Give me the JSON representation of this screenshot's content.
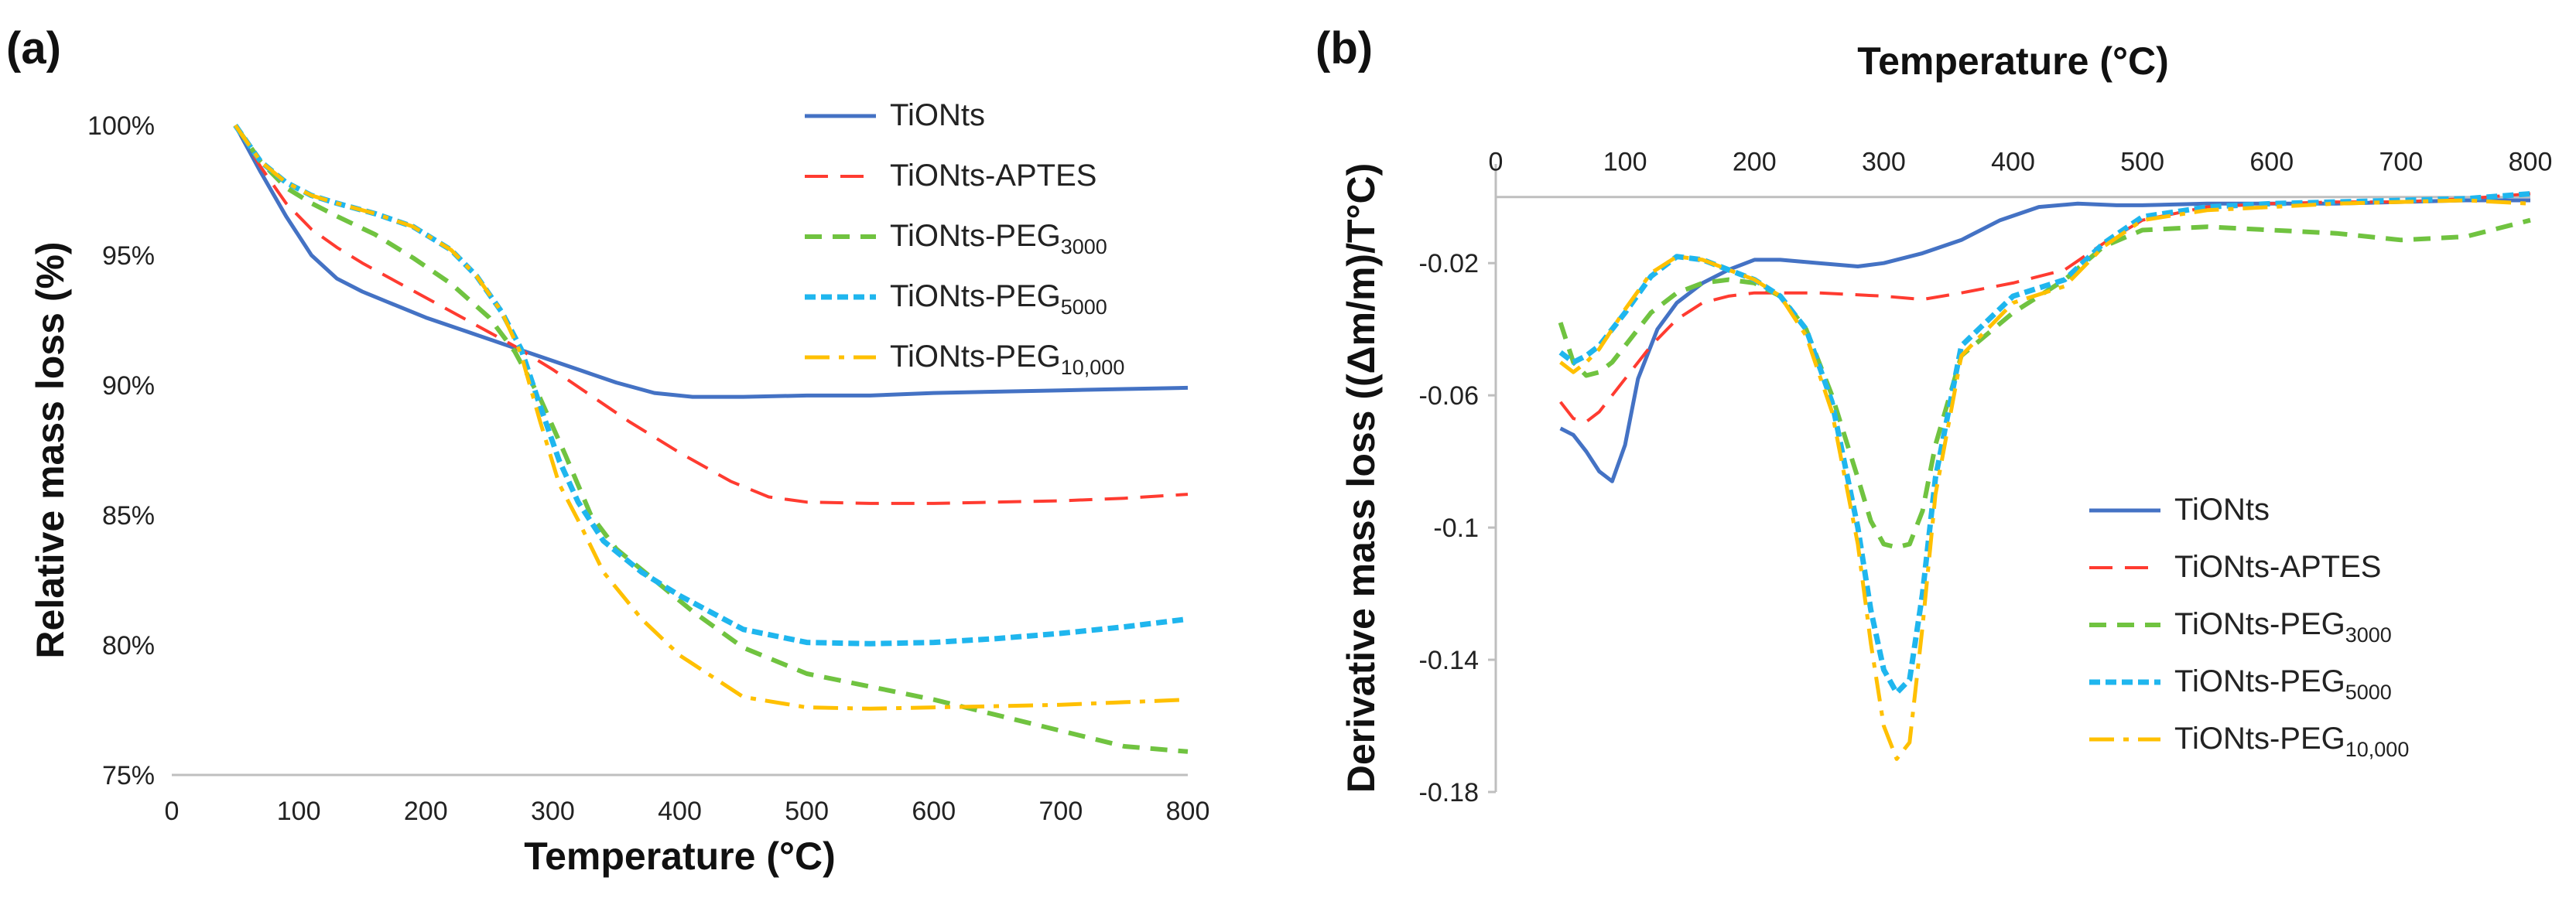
{
  "panels": {
    "a": {
      "label": "(a)"
    },
    "b": {
      "label": "(b)"
    }
  },
  "legend": [
    {
      "key": "TiONts",
      "base": "TiONts",
      "sub": ""
    },
    {
      "key": "TiONts-APTES",
      "base": "TiONts-APTES",
      "sub": ""
    },
    {
      "key": "TiONts-PEG3000",
      "base": "TiONts-PEG",
      "sub": "3000"
    },
    {
      "key": "TiONts-PEG5000",
      "base": "TiONts-PEG",
      "sub": "5000"
    },
    {
      "key": "TiONts-PEG10,000",
      "base": "TiONts-PEG",
      "sub": "10,000"
    }
  ],
  "colors": {
    "TiONts": "#4472c4",
    "TiONts-APTES": "#ff3b30",
    "TiONts-PEG3000": "#70c340",
    "TiONts-PEG5000": "#1fb6ee",
    "TiONts-PEG10,000": "#ffc000"
  },
  "chart_data": [
    {
      "type": "line",
      "id": "a",
      "title": "",
      "xlabel": "Temperature (°C)",
      "ylabel": "Relative mass loss (%)",
      "xlim": [
        0,
        800
      ],
      "ylim": [
        75,
        100
      ],
      "x_ticks": [
        0,
        100,
        200,
        300,
        400,
        500,
        600,
        700,
        800
      ],
      "y_ticks": [
        75,
        80,
        85,
        90,
        95,
        100
      ],
      "y_tick_labels": [
        "75%",
        "80%",
        "85%",
        "90%",
        "95%",
        "100%"
      ],
      "series": [
        {
          "name": "TiONts",
          "x": [
            50,
            70,
            90,
            110,
            130,
            150,
            170,
            200,
            230,
            260,
            290,
            320,
            350,
            380,
            410,
            450,
            500,
            550,
            600,
            650,
            700,
            750,
            800
          ],
          "y": [
            100,
            98.2,
            96.5,
            95.0,
            94.1,
            93.6,
            93.2,
            92.6,
            92.1,
            91.6,
            91.1,
            90.6,
            90.1,
            89.7,
            89.55,
            89.55,
            89.6,
            89.6,
            89.7,
            89.75,
            89.8,
            89.85,
            89.9
          ]
        },
        {
          "name": "TiONts-APTES",
          "x": [
            50,
            70,
            90,
            110,
            130,
            150,
            180,
            210,
            240,
            270,
            300,
            330,
            360,
            400,
            440,
            470,
            500,
            550,
            600,
            650,
            700,
            750,
            800
          ],
          "y": [
            100,
            98.4,
            97.0,
            96.0,
            95.3,
            94.7,
            93.9,
            93.1,
            92.3,
            91.5,
            90.6,
            89.6,
            88.6,
            87.4,
            86.3,
            85.7,
            85.5,
            85.45,
            85.45,
            85.5,
            85.55,
            85.65,
            85.8
          ]
        },
        {
          "name": "TiONts-PEG3000",
          "x": [
            50,
            70,
            90,
            110,
            130,
            160,
            190,
            220,
            250,
            270,
            290,
            310,
            330,
            350,
            380,
            410,
            450,
            500,
            550,
            600,
            650,
            700,
            750,
            800
          ],
          "y": [
            100,
            98.6,
            97.6,
            97.0,
            96.5,
            95.8,
            94.9,
            93.9,
            92.6,
            91.3,
            89.5,
            87.3,
            85.0,
            83.7,
            82.5,
            81.3,
            79.9,
            78.9,
            78.4,
            77.9,
            77.3,
            76.7,
            76.1,
            75.9
          ]
        },
        {
          "name": "TiONts-PEG5000",
          "x": [
            50,
            70,
            90,
            110,
            130,
            160,
            190,
            220,
            240,
            260,
            275,
            290,
            305,
            320,
            340,
            370,
            400,
            450,
            500,
            550,
            600,
            650,
            700,
            750,
            800
          ],
          "y": [
            100,
            98.6,
            97.8,
            97.3,
            97.0,
            96.6,
            96.1,
            95.2,
            94.2,
            92.8,
            91.4,
            89.2,
            87.1,
            85.5,
            84.0,
            82.8,
            81.9,
            80.6,
            80.1,
            80.05,
            80.1,
            80.25,
            80.45,
            80.7,
            81.0
          ]
        },
        {
          "name": "TiONts-PEG10,000",
          "x": [
            50,
            70,
            90,
            110,
            130,
            160,
            190,
            220,
            240,
            260,
            275,
            290,
            305,
            320,
            340,
            370,
            400,
            450,
            500,
            550,
            600,
            650,
            700,
            750,
            800
          ],
          "y": [
            100,
            98.6,
            97.8,
            97.3,
            97.0,
            96.6,
            96.1,
            95.2,
            94.2,
            92.8,
            91.2,
            88.6,
            86.2,
            84.8,
            82.8,
            81.0,
            79.6,
            78.0,
            77.6,
            77.55,
            77.6,
            77.65,
            77.7,
            77.8,
            77.9
          ]
        }
      ]
    },
    {
      "type": "line",
      "id": "b",
      "title": "",
      "xlabel": "Temperature (°C)",
      "xlabel_position": "top",
      "ylabel": "Derivative mass loss ((Δm/m)/T°C)",
      "xlim": [
        0,
        800
      ],
      "ylim": [
        -0.18,
        0.01
      ],
      "x_ticks": [
        0,
        100,
        200,
        300,
        400,
        500,
        600,
        700,
        800
      ],
      "y_ticks": [
        -0.02,
        -0.06,
        -0.1,
        -0.14,
        -0.18
      ],
      "y_tick_labels": [
        "-0.02",
        "-0.06",
        "-0.1",
        "-0.14",
        "-0.18"
      ],
      "series": [
        {
          "name": "TiONts",
          "x": [
            50,
            60,
            70,
            80,
            90,
            100,
            110,
            125,
            140,
            160,
            180,
            200,
            220,
            250,
            280,
            300,
            330,
            360,
            390,
            420,
            450,
            480,
            500,
            550,
            600,
            650,
            700,
            750,
            800
          ],
          "y": [
            -0.07,
            -0.072,
            -0.077,
            -0.083,
            -0.086,
            -0.075,
            -0.055,
            -0.04,
            -0.032,
            -0.026,
            -0.022,
            -0.019,
            -0.019,
            -0.02,
            -0.021,
            -0.02,
            -0.017,
            -0.013,
            -0.007,
            -0.003,
            -0.002,
            -0.0025,
            -0.0025,
            -0.002,
            -0.002,
            -0.002,
            -0.0015,
            -0.001,
            -0.001
          ]
        },
        {
          "name": "TiONts-APTES",
          "x": [
            50,
            60,
            70,
            80,
            90,
            100,
            120,
            140,
            160,
            180,
            200,
            250,
            300,
            330,
            360,
            400,
            440,
            470,
            500,
            550,
            600,
            650,
            700,
            750,
            800
          ],
          "y": [
            -0.062,
            -0.067,
            -0.068,
            -0.065,
            -0.06,
            -0.055,
            -0.045,
            -0.037,
            -0.032,
            -0.03,
            -0.029,
            -0.029,
            -0.03,
            -0.031,
            -0.029,
            -0.026,
            -0.022,
            -0.014,
            -0.007,
            -0.003,
            -0.002,
            -0.0015,
            -0.0015,
            -0.0005,
            0.001
          ]
        },
        {
          "name": "TiONts-PEG3000",
          "x": [
            50,
            60,
            70,
            80,
            90,
            100,
            120,
            140,
            160,
            180,
            200,
            220,
            240,
            260,
            280,
            290,
            300,
            310,
            320,
            330,
            340,
            360,
            400,
            440,
            470,
            500,
            550,
            600,
            650,
            700,
            750,
            800
          ],
          "y": [
            -0.038,
            -0.05,
            -0.054,
            -0.053,
            -0.05,
            -0.045,
            -0.035,
            -0.029,
            -0.026,
            -0.025,
            -0.026,
            -0.03,
            -0.04,
            -0.06,
            -0.085,
            -0.098,
            -0.105,
            -0.106,
            -0.105,
            -0.095,
            -0.075,
            -0.048,
            -0.035,
            -0.025,
            -0.015,
            -0.01,
            -0.009,
            -0.01,
            -0.011,
            -0.013,
            -0.012,
            -0.007
          ]
        },
        {
          "name": "TiONts-PEG5000",
          "x": [
            50,
            60,
            70,
            80,
            90,
            100,
            120,
            140,
            160,
            180,
            200,
            220,
            240,
            260,
            280,
            290,
            300,
            310,
            320,
            330,
            340,
            360,
            400,
            440,
            470,
            500,
            550,
            600,
            650,
            700,
            750,
            800
          ],
          "y": [
            -0.047,
            -0.05,
            -0.048,
            -0.045,
            -0.04,
            -0.035,
            -0.024,
            -0.018,
            -0.019,
            -0.022,
            -0.025,
            -0.03,
            -0.04,
            -0.062,
            -0.1,
            -0.125,
            -0.143,
            -0.15,
            -0.146,
            -0.12,
            -0.085,
            -0.045,
            -0.03,
            -0.025,
            -0.014,
            -0.006,
            -0.003,
            -0.002,
            -0.0015,
            -0.001,
            -0.0005,
            0.001
          ]
        },
        {
          "name": "TiONts-PEG10,000",
          "x": [
            50,
            60,
            70,
            80,
            90,
            100,
            120,
            140,
            160,
            180,
            200,
            220,
            240,
            260,
            280,
            290,
            300,
            310,
            320,
            330,
            340,
            360,
            400,
            440,
            470,
            500,
            550,
            600,
            650,
            700,
            750,
            800
          ],
          "y": [
            -0.05,
            -0.053,
            -0.05,
            -0.046,
            -0.04,
            -0.034,
            -0.023,
            -0.018,
            -0.019,
            -0.022,
            -0.025,
            -0.03,
            -0.042,
            -0.065,
            -0.105,
            -0.135,
            -0.16,
            -0.17,
            -0.165,
            -0.13,
            -0.09,
            -0.048,
            -0.032,
            -0.027,
            -0.015,
            -0.007,
            -0.004,
            -0.003,
            -0.002,
            -0.0015,
            -0.001,
            -0.002
          ]
        }
      ]
    }
  ]
}
